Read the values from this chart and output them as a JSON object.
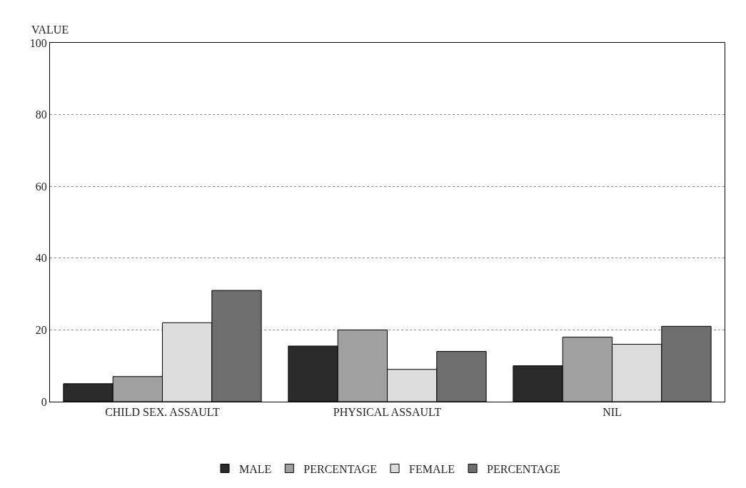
{
  "chart_data": {
    "type": "bar",
    "ylabel": "VALUE",
    "categories": [
      "CHILD SEX. ASSAULT",
      "PHYSICAL ASSAULT",
      "NIL"
    ],
    "series": [
      {
        "name": "MALE",
        "color": "#2b2b2b",
        "values": [
          5,
          15.5,
          10
        ]
      },
      {
        "name": "PERCENTAGE",
        "color": "#a0a0a0",
        "values": [
          7,
          20,
          18
        ]
      },
      {
        "name": "FEMALE",
        "color": "#dcdcdc",
        "values": [
          22,
          9,
          16
        ]
      },
      {
        "name": "PERCENTAGE",
        "color": "#6e6e6e",
        "values": [
          31,
          14,
          21
        ]
      }
    ],
    "ylim": [
      0,
      100
    ],
    "yticks": [
      0,
      20,
      40,
      60,
      80,
      100
    ],
    "grid": "y",
    "legend": "bottom"
  }
}
